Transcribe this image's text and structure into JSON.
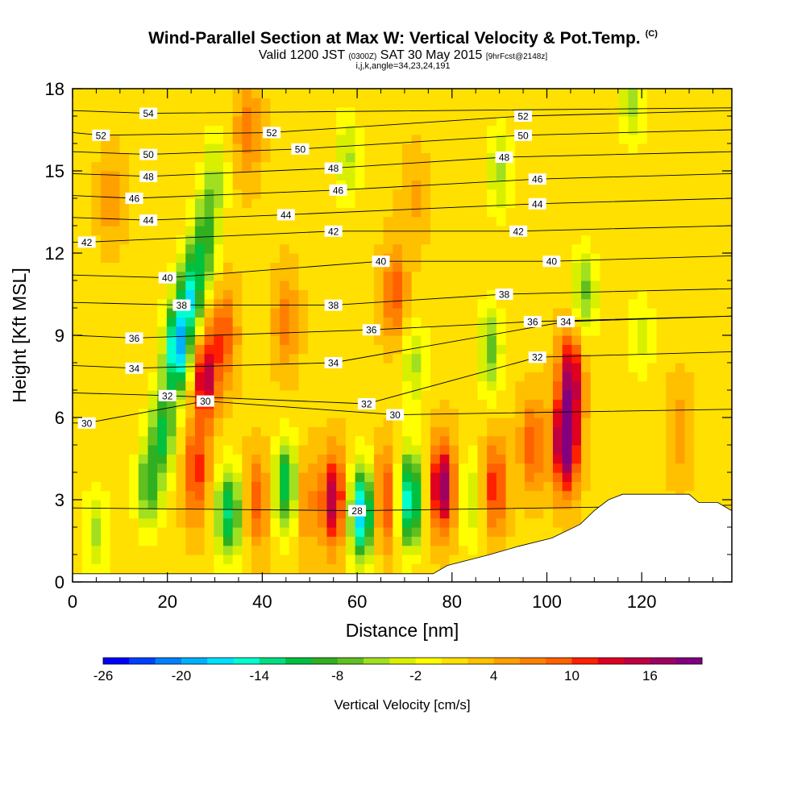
{
  "title": {
    "line1": "Wind-Parallel Section at Max W: Vertical Velocity & Pot.Temp.",
    "copyright": "(C)",
    "line2_a": "Valid 1200 JST",
    "line2_b": "(0300Z)",
    "line2_c": "SAT 30 May 2015",
    "line2_d": "[9hrFcst@2148z]",
    "line3": "i,j,k,angle=34,23,24,191"
  },
  "chart_data": {
    "type": "heatmap",
    "xlabel": "Distance [nm]",
    "ylabel": "Height [Kft MSL]",
    "xlim": [
      0,
      139
    ],
    "ylim": [
      0,
      18
    ],
    "x_ticks": [
      "0",
      "20",
      "40",
      "60",
      "80",
      "100",
      "120"
    ],
    "x_tick_values": [
      0,
      20,
      40,
      60,
      80,
      100,
      120
    ],
    "y_ticks": [
      "0",
      "3",
      "6",
      "9",
      "12",
      "15",
      "18"
    ],
    "y_tick_values": [
      0,
      3,
      6,
      9,
      12,
      15,
      18
    ],
    "colorbar": {
      "label": "Vertical Velocity [cm/s]",
      "tick_labels": [
        "-26",
        "-20",
        "-14",
        "-8",
        "-2",
        "4",
        "10",
        "16"
      ],
      "tick_values": [
        -26,
        -20,
        -14,
        -8,
        -2,
        4,
        10,
        16
      ],
      "min": -26,
      "max": 20,
      "step": 2,
      "colors": [
        "#0000ff",
        "#0040ff",
        "#0080ff",
        "#00b0ff",
        "#00e0ff",
        "#00ffd0",
        "#00e080",
        "#00c040",
        "#30b020",
        "#60c020",
        "#a0e020",
        "#d8f000",
        "#ffff00",
        "#ffe000",
        "#ffc000",
        "#ffa000",
        "#ff8000",
        "#ff6000",
        "#ff2000",
        "#e00020",
        "#c00040",
        "#a00060",
        "#800080"
      ]
    },
    "vertical_velocity_cells": [
      {
        "x": 5,
        "z": 1.8,
        "w": -6
      },
      {
        "x": 16,
        "z": 3.5,
        "w": -10
      },
      {
        "x": 19,
        "z": 5.5,
        "w": -12
      },
      {
        "x": 22,
        "z": 8.5,
        "w": -20
      },
      {
        "x": 25,
        "z": 10.5,
        "w": -16
      },
      {
        "x": 28,
        "z": 12.5,
        "w": -10
      },
      {
        "x": 30,
        "z": 14.8,
        "w": -6
      },
      {
        "x": 28,
        "z": 7.5,
        "w": 14
      },
      {
        "x": 32,
        "z": 9,
        "w": 8
      },
      {
        "x": 26,
        "z": 4,
        "w": 10
      },
      {
        "x": 33,
        "z": 2.5,
        "w": -14
      },
      {
        "x": 39,
        "z": 3,
        "w": 8
      },
      {
        "x": 45,
        "z": 3.5,
        "w": -14
      },
      {
        "x": 49,
        "z": 3,
        "w": 6
      },
      {
        "x": 55,
        "z": 3,
        "w": 14
      },
      {
        "x": 61,
        "z": 2.5,
        "w": -20
      },
      {
        "x": 66,
        "z": 3,
        "w": 10
      },
      {
        "x": 71,
        "z": 3,
        "w": -18
      },
      {
        "x": 78,
        "z": 3.5,
        "w": 16
      },
      {
        "x": 84,
        "z": 3,
        "w": -6
      },
      {
        "x": 89,
        "z": 3.5,
        "w": 10
      },
      {
        "x": 97,
        "z": 5,
        "w": 8
      },
      {
        "x": 104,
        "z": 5,
        "w": 20
      },
      {
        "x": 105,
        "z": 7.5,
        "w": 14
      },
      {
        "x": 45,
        "z": 9.5,
        "w": 6
      },
      {
        "x": 68,
        "z": 10.5,
        "w": 8
      },
      {
        "x": 72,
        "z": 8,
        "w": -6
      },
      {
        "x": 88,
        "z": 8.5,
        "w": -8
      },
      {
        "x": 108,
        "z": 10.5,
        "w": -8
      },
      {
        "x": 120,
        "z": 9,
        "w": -4
      },
      {
        "x": 58,
        "z": 15.5,
        "w": -6
      },
      {
        "x": 90,
        "z": 15,
        "w": -6
      },
      {
        "x": 118,
        "z": 17.5,
        "w": -6
      },
      {
        "x": 37,
        "z": 16.5,
        "w": 6
      },
      {
        "x": 8,
        "z": 14,
        "w": 4
      },
      {
        "x": 72,
        "z": 14,
        "w": 3
      },
      {
        "x": 128,
        "z": 5.5,
        "w": 4
      }
    ],
    "theta_contour_labels": [
      {
        "label": "54",
        "x": 16,
        "z": 17.1
      },
      {
        "label": "52",
        "x": 6,
        "z": 16.3
      },
      {
        "label": "52",
        "x": 42,
        "z": 16.4
      },
      {
        "label": "52",
        "x": 95,
        "z": 17.0
      },
      {
        "label": "50",
        "x": 16,
        "z": 15.6
      },
      {
        "label": "50",
        "x": 48,
        "z": 15.8
      },
      {
        "label": "50",
        "x": 95,
        "z": 16.3
      },
      {
        "label": "48",
        "x": 16,
        "z": 14.8
      },
      {
        "label": "48",
        "x": 55,
        "z": 15.1
      },
      {
        "label": "48",
        "x": 91,
        "z": 15.5
      },
      {
        "label": "46",
        "x": 13,
        "z": 14.0
      },
      {
        "label": "46",
        "x": 56,
        "z": 14.3
      },
      {
        "label": "46",
        "x": 98,
        "z": 14.7
      },
      {
        "label": "44",
        "x": 16,
        "z": 13.2
      },
      {
        "label": "44",
        "x": 45,
        "z": 13.4
      },
      {
        "label": "44",
        "x": 98,
        "z": 13.8
      },
      {
        "label": "42",
        "x": 3,
        "z": 12.4
      },
      {
        "label": "42",
        "x": 55,
        "z": 12.8
      },
      {
        "label": "42",
        "x": 94,
        "z": 12.8
      },
      {
        "label": "40",
        "x": 20,
        "z": 11.1
      },
      {
        "label": "40",
        "x": 65,
        "z": 11.7
      },
      {
        "label": "40",
        "x": 101,
        "z": 11.7
      },
      {
        "label": "38",
        "x": 23,
        "z": 10.1
      },
      {
        "label": "38",
        "x": 55,
        "z": 10.1
      },
      {
        "label": "38",
        "x": 91,
        "z": 10.5
      },
      {
        "label": "36",
        "x": 13,
        "z": 8.9
      },
      {
        "label": "36",
        "x": 63,
        "z": 9.2
      },
      {
        "label": "36",
        "x": 97,
        "z": 9.5
      },
      {
        "label": "34",
        "x": 13,
        "z": 7.8
      },
      {
        "label": "34",
        "x": 55,
        "z": 8.0
      },
      {
        "label": "34",
        "x": 104,
        "z": 9.5
      },
      {
        "label": "32",
        "x": 20,
        "z": 6.8
      },
      {
        "label": "32",
        "x": 62,
        "z": 6.5
      },
      {
        "label": "32",
        "x": 98,
        "z": 8.2
      },
      {
        "label": "30",
        "x": 28,
        "z": 6.6
      },
      {
        "label": "30",
        "x": 68,
        "z": 6.1
      },
      {
        "label": "30",
        "x": 3,
        "z": 5.8
      },
      {
        "label": "28",
        "x": 60,
        "z": 2.6
      }
    ],
    "terrain_profile": [
      [
        0,
        0.3
      ],
      [
        20,
        0.3
      ],
      [
        40,
        0.3
      ],
      [
        60,
        0.3
      ],
      [
        76,
        0.3
      ],
      [
        79,
        0.6
      ],
      [
        88,
        1.0
      ],
      [
        94,
        1.3
      ],
      [
        101,
        1.6
      ],
      [
        107,
        2.1
      ],
      [
        110,
        2.6
      ],
      [
        113,
        3.0
      ],
      [
        116,
        3.2
      ],
      [
        130,
        3.2
      ],
      [
        132,
        2.9
      ],
      [
        136,
        2.9
      ],
      [
        139,
        2.6
      ]
    ]
  }
}
